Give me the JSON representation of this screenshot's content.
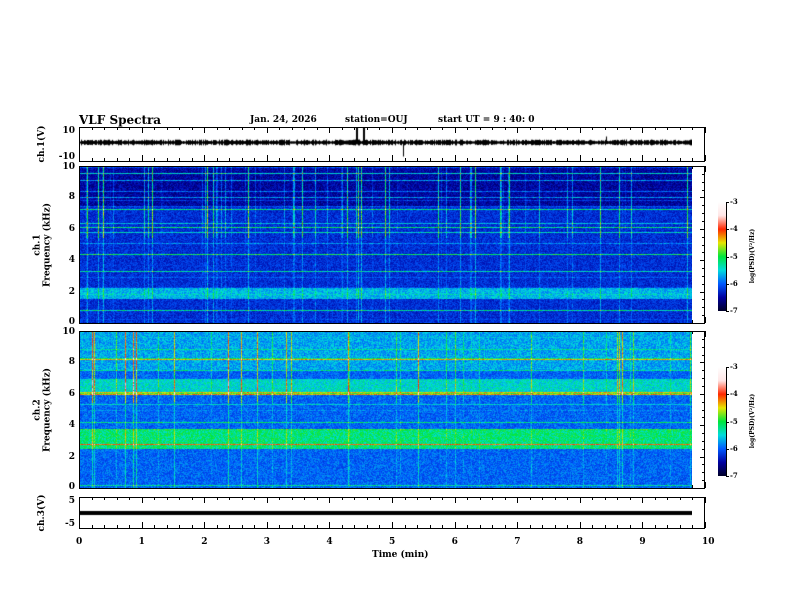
{
  "header": {
    "title": "VLF Spectra",
    "date": "Jan. 24, 2026",
    "station": "station=OUJ",
    "start": "start  UT =  9 : 40: 0"
  },
  "chart_data": {
    "type": "heatmap",
    "xlabel": "Time  (min)",
    "xlim": [
      0,
      10
    ],
    "xticks": [
      "0",
      "1",
      "2",
      "3",
      "4",
      "5",
      "6",
      "7",
      "8",
      "9",
      "10"
    ],
    "panels": [
      {
        "id": "ch1_wave",
        "ylabel": "ch.1(V)",
        "ylim": [
          -10,
          10
        ],
        "yticks": [
          "10",
          "-10"
        ]
      },
      {
        "id": "ch1_spec",
        "ylabel": "ch.1",
        "ylabel2": "Frequency  (kHz)",
        "ylim": [
          0,
          10
        ],
        "yticks": [
          "0",
          "2",
          "4",
          "6",
          "8",
          "10"
        ]
      },
      {
        "id": "ch2_spec",
        "ylabel": "ch.2",
        "ylabel2": "Frequency  (kHz)",
        "ylim": [
          0,
          10
        ],
        "yticks": [
          "0",
          "2",
          "4",
          "6",
          "8",
          "10"
        ]
      },
      {
        "id": "ch3_wave",
        "ylabel": "ch.3(V)",
        "ylim": [
          -5,
          5
        ],
        "yticks": [
          "5",
          "-5"
        ],
        "level": 0
      }
    ],
    "colorbar": {
      "label": "log(PSD)(V²/Hz)",
      "range": [
        -7,
        -3
      ],
      "ticks": [
        "-3",
        "-4",
        "-5",
        "-6",
        "-7"
      ]
    },
    "data_end_min": 9.8
  }
}
